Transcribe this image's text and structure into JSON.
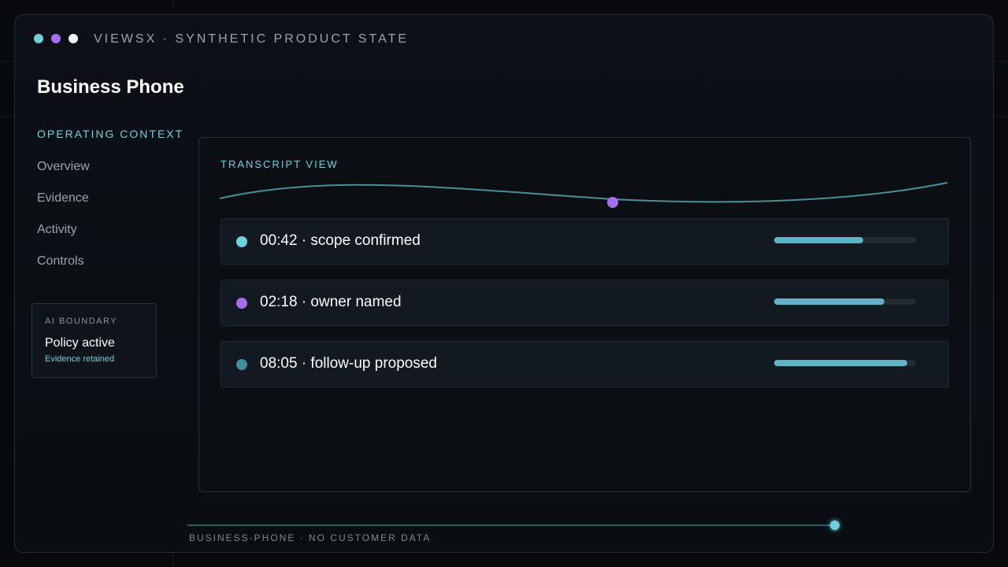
{
  "header": {
    "brand": "VIEWSX · SYNTHETIC PRODUCT STATE",
    "dot_colors": [
      "#6fd0dd",
      "#a56ef0",
      "#f2f4f6"
    ]
  },
  "page": {
    "title": "Business Phone"
  },
  "sidebar": {
    "section_label": "OPERATING CONTEXT",
    "items": [
      {
        "label": "Overview"
      },
      {
        "label": "Evidence"
      },
      {
        "label": "Activity"
      },
      {
        "label": "Controls"
      }
    ],
    "boundary": {
      "label": "AI BOUNDARY",
      "title": "Policy active",
      "subtitle": "Evidence retained"
    }
  },
  "transcript": {
    "label": "TRANSCRIPT VIEW",
    "marker_color": "#a56ef0",
    "events": [
      {
        "text": "00:42 · scope confirmed",
        "color": "#6fd0dd",
        "progress": 0.63
      },
      {
        "text": "02:18 · owner named",
        "color": "#a56ef0",
        "progress": 0.78
      },
      {
        "text": "08:05 · follow-up proposed",
        "color": "#3f8f9a",
        "progress": 0.94
      }
    ]
  },
  "footer": {
    "text": "BUSINESS-PHONE · NO CUSTOMER DATA",
    "accent": "#6fd0dd"
  }
}
